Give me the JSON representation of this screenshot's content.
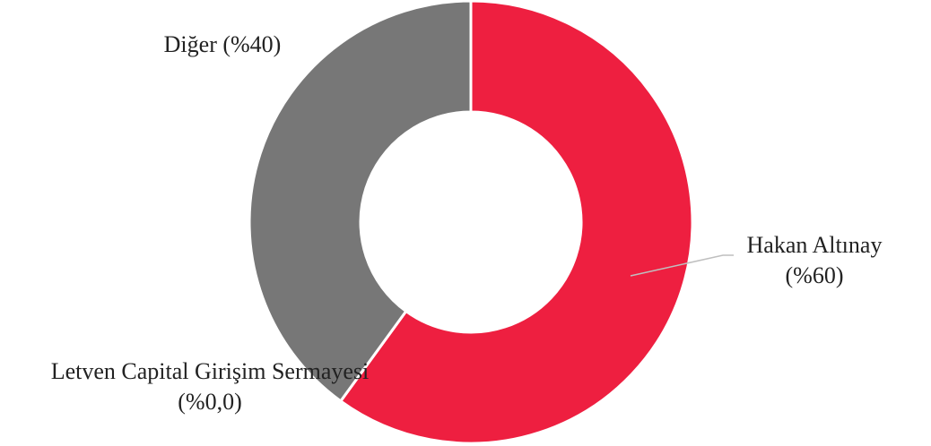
{
  "chart_data": {
    "type": "pie",
    "style": "donut",
    "legend": "none",
    "slices": [
      {
        "name": "Hakan Altınay",
        "value": 60,
        "color": "#EE1F40",
        "label_lines": [
          "Hakan Altınay",
          "(%60)"
        ]
      },
      {
        "name": "Letven Capital Girişim Sermayesi",
        "value": 0.0,
        "color": "#4472C4",
        "label_lines": [
          "Letven Capital Girişim Sermayesi",
          "(%0,0)"
        ]
      },
      {
        "name": "Diğer",
        "value": 40,
        "color": "#777777",
        "label_lines": [
          "Diğer (%40)"
        ]
      }
    ]
  }
}
